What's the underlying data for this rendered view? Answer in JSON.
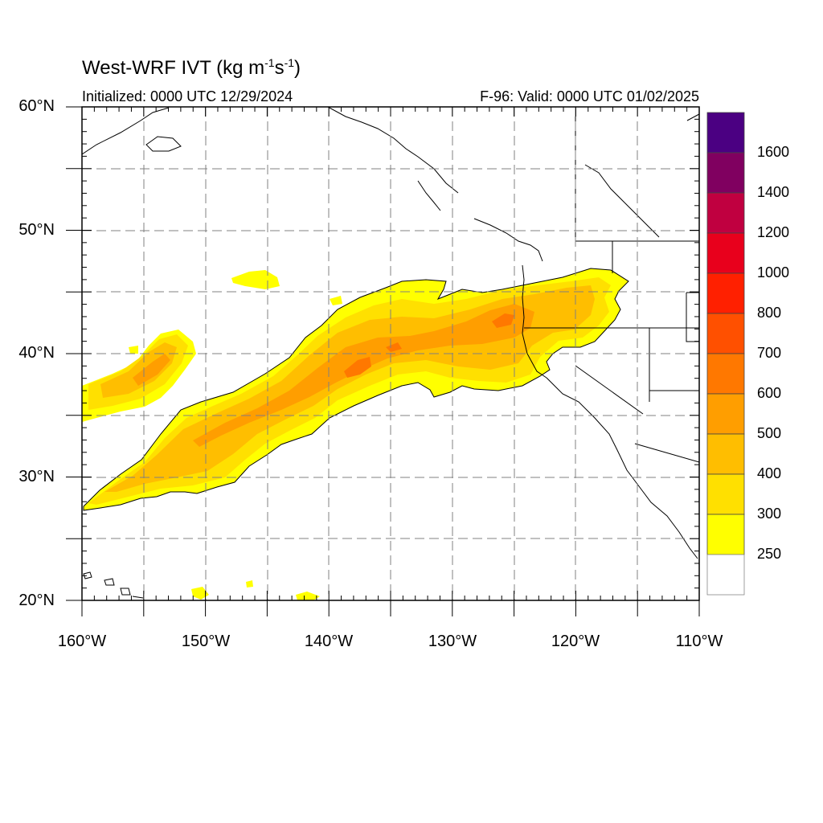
{
  "header": {
    "title_main": "West-WRF IVT (kg m",
    "title_exp1": "-1",
    "title_mid": "s",
    "title_exp2": "-1",
    "title_end": ")",
    "initialized": "Initialized: 0000 UTC 12/29/2024",
    "valid": "F-96: Valid: 0000 UTC 01/02/2025"
  },
  "map": {
    "lat_labels": [
      "60°N",
      "50°N",
      "40°N",
      "30°N",
      "20°N"
    ],
    "lon_labels": [
      "160°W",
      "150°W",
      "140°W",
      "130°W",
      "120°W",
      "110°W"
    ],
    "lat_range": [
      20,
      60
    ],
    "lon_range": [
      -160,
      -110
    ],
    "grid": "dashed"
  },
  "colorbar": {
    "labels": [
      "1600",
      "1400",
      "1200",
      "1000",
      "800",
      "700",
      "600",
      "500",
      "400",
      "300",
      "250"
    ],
    "colors": [
      "#4b0082",
      "#800060",
      "#c00040",
      "#e8001c",
      "#ff2000",
      "#ff5000",
      "#ff7800",
      "#ff9e00",
      "#ffbe00",
      "#ffe000",
      "#ffff00",
      "#ffffff"
    ]
  }
}
